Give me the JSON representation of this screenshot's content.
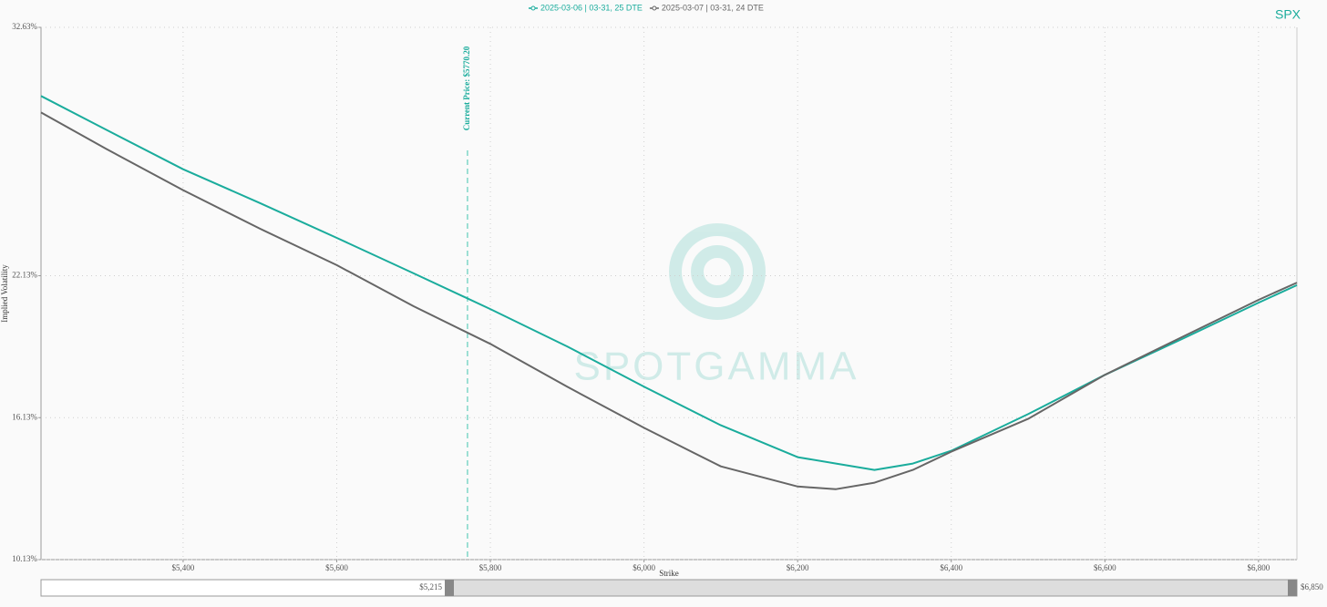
{
  "chart_data": {
    "type": "line",
    "title": "SPX",
    "x_label": "Strike",
    "y_label": "Implied Volatility",
    "watermark": "SPOTGAMMA",
    "xlim": [
      5215,
      6850
    ],
    "ylim": [
      10.13,
      32.63
    ],
    "xticks": [
      {
        "value": 5400,
        "label": "$5,400"
      },
      {
        "value": 5600,
        "label": "$5,600"
      },
      {
        "value": 5800,
        "label": "$5,800"
      },
      {
        "value": 6000,
        "label": "$6,000"
      },
      {
        "value": 6200,
        "label": "$6,200"
      },
      {
        "value": 6400,
        "label": "$6,400"
      },
      {
        "value": 6600,
        "label": "$6,600"
      },
      {
        "value": 6800,
        "label": "$6,800"
      }
    ],
    "yticks": [
      {
        "value": 10.13,
        "label": "10.13%"
      },
      {
        "value": 16.13,
        "label": "16.13%"
      },
      {
        "value": 22.13,
        "label": "22.13%"
      },
      {
        "value": 32.63,
        "label": "32.63%"
      }
    ],
    "grid": true,
    "current_price": {
      "value": 5770.2,
      "label": "Current Price: $5770.20",
      "color": "#7fd6c8"
    },
    "x": [
      5215,
      5300,
      5400,
      5500,
      5600,
      5700,
      5800,
      5900,
      6000,
      6100,
      6200,
      6250,
      6300,
      6350,
      6400,
      6500,
      6600,
      6700,
      6800,
      6850
    ],
    "series": [
      {
        "name": "2025-03-06 | 03-31, 25 DTE",
        "color": "#1aac9c",
        "values": [
          29.73,
          28.3,
          26.63,
          25.2,
          23.73,
          22.23,
          20.72,
          19.14,
          17.44,
          15.81,
          14.46,
          14.19,
          13.92,
          14.19,
          14.73,
          16.28,
          17.94,
          19.45,
          20.99,
          21.73
        ]
      },
      {
        "name": "2025-03-07 | 03-31, 24 DTE",
        "color": "#666666",
        "values": [
          29.03,
          27.49,
          25.75,
          24.12,
          22.58,
          20.84,
          19.25,
          17.44,
          15.7,
          14.07,
          13.22,
          13.11,
          13.38,
          13.92,
          14.69,
          16.08,
          17.94,
          19.53,
          21.11,
          21.84
        ]
      }
    ],
    "slider": {
      "start_label": "$5,215",
      "end_label": "$6,850"
    }
  }
}
